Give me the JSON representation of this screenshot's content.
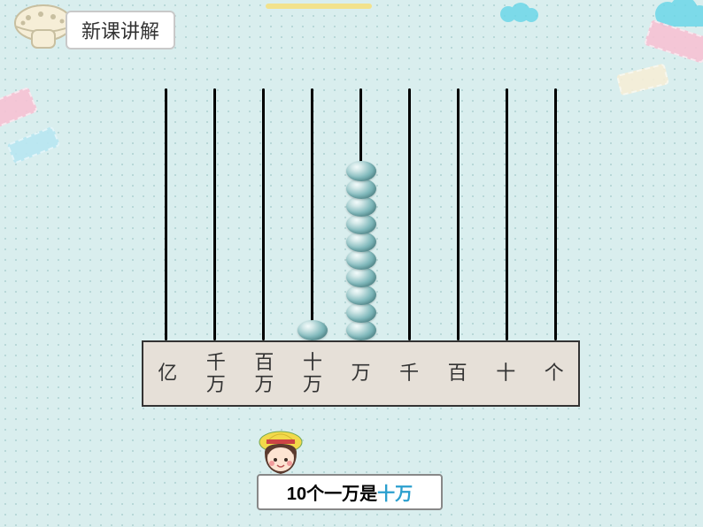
{
  "header": {
    "title": "新课讲解"
  },
  "abacus": {
    "rod_count": 9,
    "rod_color": "#000000",
    "rod_width": 3,
    "bead_gradient": [
      "#f2fbfb",
      "#d4e9e9",
      "#7fb8bb",
      "#4a8a8e"
    ],
    "bead_w": 34,
    "bead_h": 23,
    "bead_overlap": 20,
    "rod_height": 285,
    "places": [
      {
        "label": "亿",
        "beads": 0
      },
      {
        "label": "千\n万",
        "beads": 0
      },
      {
        "label": "百\n万",
        "beads": 0
      },
      {
        "label": "十\n万",
        "beads": 1
      },
      {
        "label": "万",
        "beads": 10
      },
      {
        "label": "千",
        "beads": 0
      },
      {
        "label": "百",
        "beads": 0
      },
      {
        "label": "十",
        "beads": 0
      },
      {
        "label": "个",
        "beads": 0
      }
    ],
    "bar_bg": "#e6e0d8",
    "bar_border": "#333333",
    "label_fontsize": 22
  },
  "caption": {
    "prefix": "10个一万是",
    "highlight": "十万",
    "highlight_color": "#2b9fce"
  },
  "background": {
    "color": "#d9eeee",
    "dot_color": "#b8d8d8",
    "dot_spacing": 12
  },
  "decorations": {
    "mushroom_cap": "#f6eed7",
    "mushroom_edge": "#c8bfa0",
    "washi_pink": "#f7c2d4",
    "washi_blue": "#b8e7f2",
    "washi_yellow": "#f6eed7",
    "cloud": "#66d6e8",
    "line_yellow": "#f2e28c"
  },
  "girl": {
    "hat": "#f2d94a",
    "hair": "#5a3a2e",
    "face": "#fde4d2",
    "blush": "#f29c9c",
    "band": "#c44"
  }
}
